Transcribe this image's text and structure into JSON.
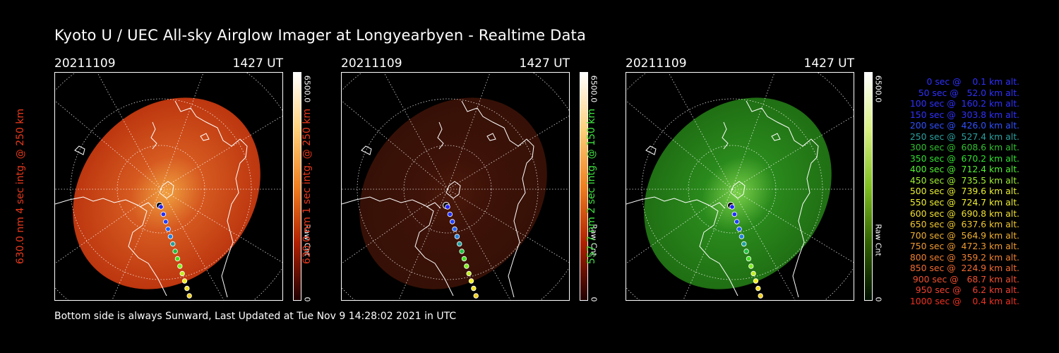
{
  "title": "Kyoto U / UEC All-sky Airglow Imager at Longyearbyen - Realtime Data",
  "footer": "Bottom side is always Sunward, Last Updated at Tue Nov  9 14:28:02 2021 in UTC",
  "panels": [
    {
      "date": "20211109",
      "time": "1427 UT",
      "side_label": "630.0 nm 4 sec intg. @ 250 km",
      "label_color": "#e8391c",
      "cbar_max": "6500.0",
      "cbar_min": "0",
      "cbar_unit": "Raw Cnt",
      "color_scheme": "red-bright"
    },
    {
      "date": "20211109",
      "time": "1427 UT",
      "side_label": "630.0 nm 1 sec intg. @ 250 km",
      "label_color": "#e8391c",
      "cbar_max": "6500.0",
      "cbar_min": "0",
      "cbar_unit": "Raw Cnt",
      "color_scheme": "red-dim"
    },
    {
      "date": "20211109",
      "time": "1427 UT",
      "side_label": "557.7 nm 2 sec intg. @ 150 km",
      "label_color": "#3fe03f",
      "cbar_max": "6500.0",
      "cbar_min": "0",
      "cbar_unit": "Raw Cnt",
      "color_scheme": "green"
    }
  ],
  "legend": [
    {
      "text": "0 sec @    0.1 km alt.",
      "color": "#3030ff"
    },
    {
      "text": "50 sec @   52.0 km alt.",
      "color": "#3030ff"
    },
    {
      "text": "100 sec @  160.2 km alt.",
      "color": "#3030ff"
    },
    {
      "text": "150 sec @  303.8 km alt.",
      "color": "#3030ff"
    },
    {
      "text": "200 sec @  426.0 km alt.",
      "color": "#3050ff"
    },
    {
      "text": "250 sec @  527.4 km alt.",
      "color": "#2aa0a0"
    },
    {
      "text": "300 sec @  608.6 km alt.",
      "color": "#30c030"
    },
    {
      "text": "350 sec @  670.2 km alt.",
      "color": "#30e030"
    },
    {
      "text": "400 sec @  712.4 km alt.",
      "color": "#50f030"
    },
    {
      "text": "450 sec @  735.5 km alt.",
      "color": "#a0f030"
    },
    {
      "text": "500 sec @  739.6 km alt.",
      "color": "#e8f030"
    },
    {
      "text": "550 sec @  724.7 km alt.",
      "color": "#f0f030"
    },
    {
      "text": "600 sec @  690.8 km alt.",
      "color": "#f0e030"
    },
    {
      "text": "650 sec @  637.6 km alt.",
      "color": "#f0c830"
    },
    {
      "text": "700 sec @  564.9 km alt.",
      "color": "#f0b030"
    },
    {
      "text": "750 sec @  472.3 km alt.",
      "color": "#f09a30"
    },
    {
      "text": "800 sec @  359.2 km alt.",
      "color": "#f08030"
    },
    {
      "text": "850 sec @  224.9 km alt.",
      "color": "#f06a30"
    },
    {
      "text": "900 sec @   68.7 km alt.",
      "color": "#f05030"
    },
    {
      "text": "950 sec @    6.2 km alt.",
      "color": "#f04030"
    },
    {
      "text": "1000 sec @    0.4 km alt.",
      "color": "#f03020"
    }
  ]
}
